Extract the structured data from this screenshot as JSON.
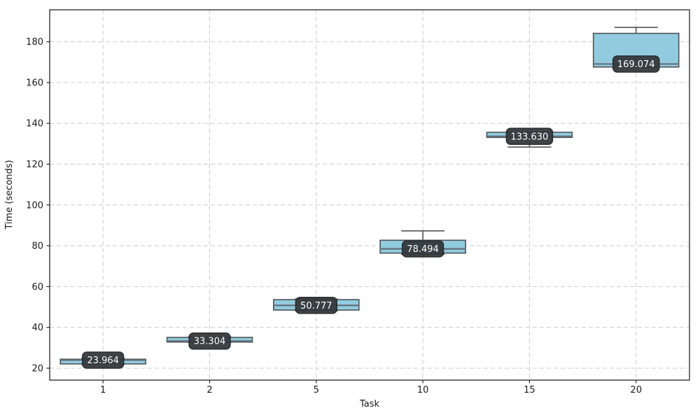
{
  "chart_data": {
    "type": "box",
    "title": "",
    "xlabel": "Task",
    "ylabel": "Time (seconds)",
    "categories": [
      "1",
      "2",
      "5",
      "10",
      "15",
      "20"
    ],
    "series": [
      {
        "category": "1",
        "whisker_low": 21.9,
        "q1": 22.1,
        "median": 23.964,
        "q3": 24.4,
        "whisker_high": 24.7,
        "median_label": "23.964"
      },
      {
        "category": "2",
        "whisker_low": 32.6,
        "q1": 32.8,
        "median": 33.304,
        "q3": 35.1,
        "whisker_high": 35.3,
        "median_label": "33.304"
      },
      {
        "category": "5",
        "whisker_low": 48.2,
        "q1": 48.5,
        "median": 50.777,
        "q3": 53.6,
        "whisker_high": 53.9,
        "median_label": "50.777"
      },
      {
        "category": "10",
        "whisker_low": 75.8,
        "q1": 76.4,
        "median": 78.494,
        "q3": 82.7,
        "whisker_high": 87.3,
        "median_label": "78.494"
      },
      {
        "category": "15",
        "whisker_low": 128.4,
        "q1": 133.1,
        "median": 133.63,
        "q3": 135.6,
        "whisker_high": 135.9,
        "median_label": "133.630"
      },
      {
        "category": "20",
        "whisker_low": 167.2,
        "q1": 167.6,
        "median": 169.074,
        "q3": 184.1,
        "whisker_high": 187.0,
        "median_label": "169.074"
      }
    ],
    "y_ticks": [
      20,
      40,
      60,
      80,
      100,
      120,
      140,
      160,
      180
    ],
    "ylim": [
      14,
      196
    ],
    "grid": {
      "visible": true,
      "style": "dashed",
      "axes": "both"
    },
    "legend_position": "none",
    "colors": {
      "box_fill": "#92cbdf",
      "box_edge": "#4d5459",
      "median_line": "#64707a",
      "whisker": "#555555",
      "cap": "#555555",
      "grid": "#cccccc",
      "axis": "#262626",
      "tick_text": "#1a1a1a",
      "label_bg": "#35393d",
      "label_border": "#212427",
      "label_text": "#ffffff",
      "background": "#ffffff"
    }
  }
}
